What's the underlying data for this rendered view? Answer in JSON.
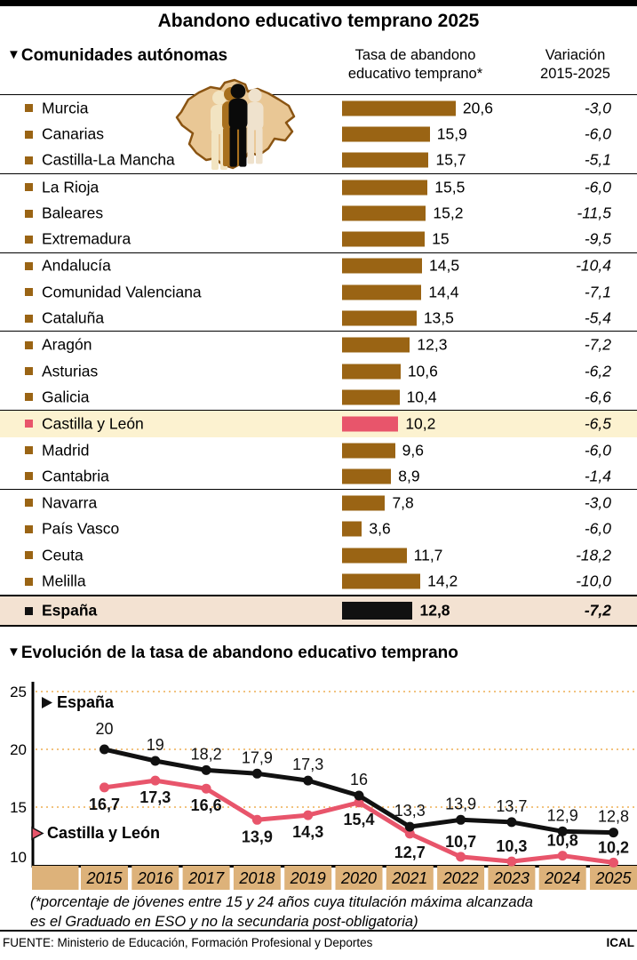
{
  "title": "Abandono educativo temprano 2025",
  "icons": {
    "section_marker": "▼",
    "legend_marker": "▶",
    "map": "castilla-y-leon-map-with-people-silhouettes"
  },
  "table": {
    "section_title": "Comunidades autónomas",
    "rate_header": [
      "Tasa de abandono",
      "educativo temprano*"
    ],
    "variation_header": [
      "Variación",
      "2015-2025"
    ],
    "rows": [
      {
        "name": "Murcia",
        "rate": 20.6,
        "rate_label": "20,6",
        "variation": "-3,0"
      },
      {
        "name": "Canarias",
        "rate": 15.9,
        "rate_label": "15,9",
        "variation": "-6,0"
      },
      {
        "name": "Castilla-La Mancha",
        "rate": 15.7,
        "rate_label": "15,7",
        "variation": "-5,1",
        "group_end": true
      },
      {
        "name": "La Rioja",
        "rate": 15.5,
        "rate_label": "15,5",
        "variation": "-6,0"
      },
      {
        "name": "Baleares",
        "rate": 15.2,
        "rate_label": "15,2",
        "variation": "-11,5"
      },
      {
        "name": "Extremadura",
        "rate": 15,
        "rate_label": "15",
        "variation": "-9,5",
        "group_end": true
      },
      {
        "name": "Andalucía",
        "rate": 14.5,
        "rate_label": "14,5",
        "variation": "-10,4"
      },
      {
        "name": "Comunidad Valenciana",
        "rate": 14.4,
        "rate_label": "14,4",
        "variation": "-7,1"
      },
      {
        "name": "Cataluña",
        "rate": 13.5,
        "rate_label": "13,5",
        "variation": "-5,4",
        "group_end": true
      },
      {
        "name": "Aragón",
        "rate": 12.3,
        "rate_label": "12,3",
        "variation": "-7,2"
      },
      {
        "name": "Asturias",
        "rate": 10.6,
        "rate_label": "10,6",
        "variation": "-6,2"
      },
      {
        "name": "Galicia",
        "rate": 10.4,
        "rate_label": "10,4",
        "variation": "-6,6",
        "group_end": true
      },
      {
        "name": "Castilla y León",
        "rate": 10.2,
        "rate_label": "10,2",
        "variation": "-6,5",
        "highlight": true
      },
      {
        "name": "Madrid",
        "rate": 9.6,
        "rate_label": "9,6",
        "variation": "-6,0"
      },
      {
        "name": "Cantabria",
        "rate": 8.9,
        "rate_label": "8,9",
        "variation": "-1,4",
        "group_end": true
      },
      {
        "name": "Navarra",
        "rate": 7.8,
        "rate_label": "7,8",
        "variation": "-3,0"
      },
      {
        "name": "País Vasco",
        "rate": 3.6,
        "rate_label": "3,6",
        "variation": "-6,0"
      },
      {
        "name": "Ceuta",
        "rate": 11.7,
        "rate_label": "11,7",
        "variation": "-18,2"
      },
      {
        "name": "Melilla",
        "rate": 14.2,
        "rate_label": "14,2",
        "variation": "-10,0"
      }
    ],
    "total_row": {
      "name": "España",
      "rate": 12.8,
      "rate_label": "12,8",
      "variation": "-7,2"
    }
  },
  "chart_data": {
    "type": "line",
    "title": "Evolución de la tasa de abandono educativo temprano",
    "x": [
      2015,
      2016,
      2017,
      2018,
      2019,
      2020,
      2021,
      2022,
      2023,
      2024,
      2025
    ],
    "ylim": [
      10,
      25
    ],
    "yticks": [
      25,
      20,
      15,
      10
    ],
    "grid": "dotted-horizontal",
    "legend_position": "inside-left",
    "series": [
      {
        "name": "España",
        "color": "#111111",
        "values": [
          20,
          19,
          18.2,
          17.9,
          17.3,
          16,
          13.3,
          13.9,
          13.7,
          12.9,
          12.8
        ],
        "labels": [
          "20",
          "19",
          "18,2",
          "17,9",
          "17,3",
          "16",
          "13,3",
          "13,9",
          "13,7",
          "12,9",
          "12,8"
        ]
      },
      {
        "name": "Castilla y León",
        "color": "#E8556B",
        "values": [
          16.7,
          17.3,
          16.6,
          13.9,
          14.3,
          15.4,
          12.7,
          10.7,
          10.3,
          10.8,
          10.2
        ],
        "labels": [
          "16,7",
          "17,3",
          "16,6",
          "13,9",
          "14,3",
          "15,4",
          "12,7",
          "10,7",
          "10,3",
          "10,8",
          "10,2"
        ]
      }
    ]
  },
  "footnote": [
    "(*porcentaje de jóvenes entre 15 y 24 años cuya titulación máxima alcanzada",
    "es el Graduado en ESO y no la secundaria post-obligatoria)"
  ],
  "source": "FUENTE: Ministerio de Educación, Formación Profesional y Deportes",
  "credit": "ICAL",
  "colors": {
    "bar": "#9A6414",
    "highlight_bar": "#E8556B",
    "highlight_row_bg": "#FCF2D0",
    "total_bar": "#111111",
    "total_row_bg": "#F3E2D2",
    "year_box": "#DDB27A",
    "gridline": "#F2C27E",
    "map_fill": "#E9C795",
    "map_stroke": "#8A5412"
  }
}
